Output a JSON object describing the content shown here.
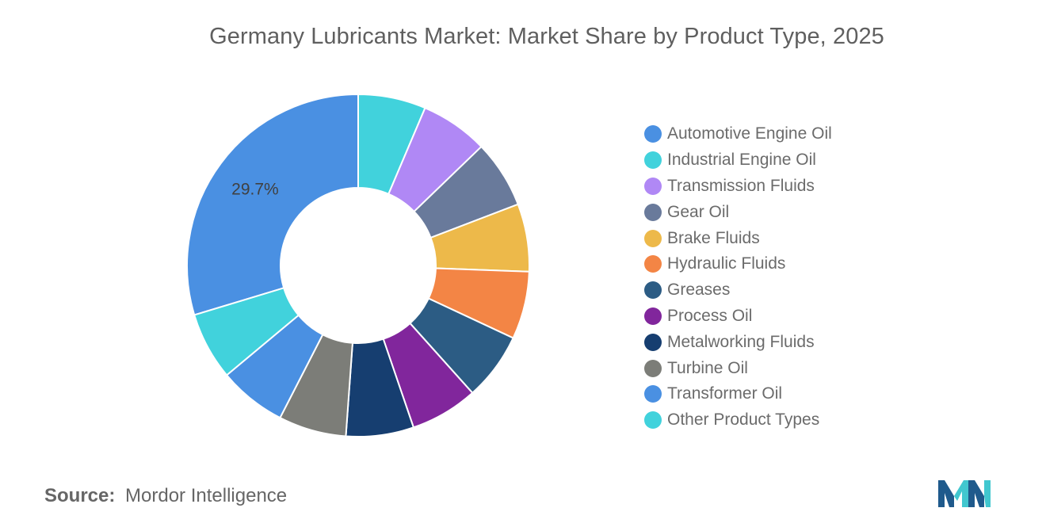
{
  "header": {
    "title": "Germany Lubricants Market: Market Share by Product Type, 2025"
  },
  "chart_data": {
    "type": "pie",
    "variant": "donut",
    "title": "Germany Lubricants Market: Market Share by Product Type, 2025",
    "unit": "%",
    "categories": [
      "Automotive Engine Oil",
      "Industrial Engine Oil",
      "Transmission Fluids",
      "Gear Oil",
      "Brake Fluids",
      "Hydraulic Fluids",
      "Greases",
      "Process Oil",
      "Metalworking Fluids",
      "Turbine Oil",
      "Transformer Oil",
      "Other Product Types"
    ],
    "values": [
      29.7,
      6.4,
      6.4,
      6.4,
      6.4,
      6.4,
      6.4,
      6.4,
      6.4,
      6.4,
      6.4,
      6.4
    ],
    "colors": [
      "#4a90e2",
      "#41d2dc",
      "#b088f5",
      "#697a9b",
      "#edb94a",
      "#f38545",
      "#2c5c84",
      "#81269c",
      "#163e70",
      "#7c7d78",
      "#4a90e2",
      "#41d2dc"
    ],
    "data_labels": [
      "29.7%",
      "",
      "",
      "",
      "",
      "",
      "",
      "",
      "",
      "",
      "",
      ""
    ],
    "legend_position": "right"
  },
  "footer": {
    "source_label": "Source:",
    "source_value": "Mordor Intelligence",
    "logo_icon": "mordor-intelligence-logo-icon",
    "logo_colors": [
      "#1f5a8c",
      "#41c7cf"
    ]
  }
}
